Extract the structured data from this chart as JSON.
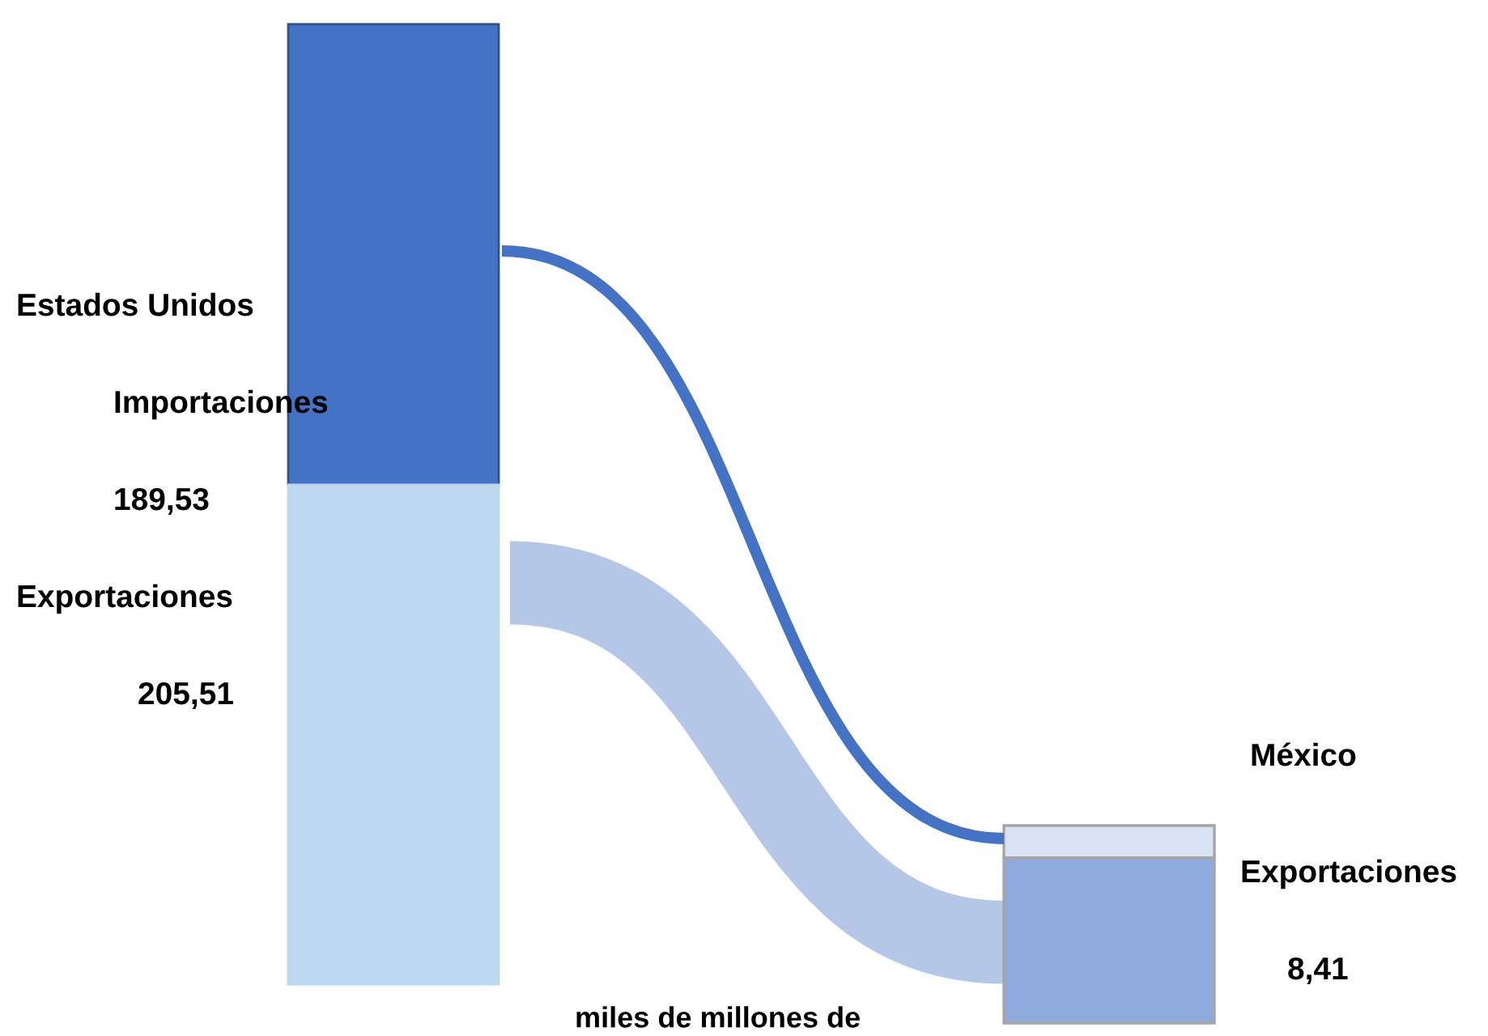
{
  "chart_data": {
    "type": "other",
    "categories": [
      "Importaciones",
      "Exportaciones"
    ],
    "series": [
      {
        "name": "Estados Unidos",
        "values": [
          189.53,
          205.51
        ],
        "value_labels": [
          "189,53",
          "205,51"
        ],
        "colors": [
          "#4472c4",
          "#bdd7ee"
        ]
      },
      {
        "name": "México",
        "values": [
          null,
          8.41
        ],
        "value_labels": [
          null,
          "8,41"
        ],
        "colors": [
          "#dae3f3",
          "#8faadc"
        ]
      }
    ],
    "annotations": [
      "miles de millones de"
    ]
  }
}
